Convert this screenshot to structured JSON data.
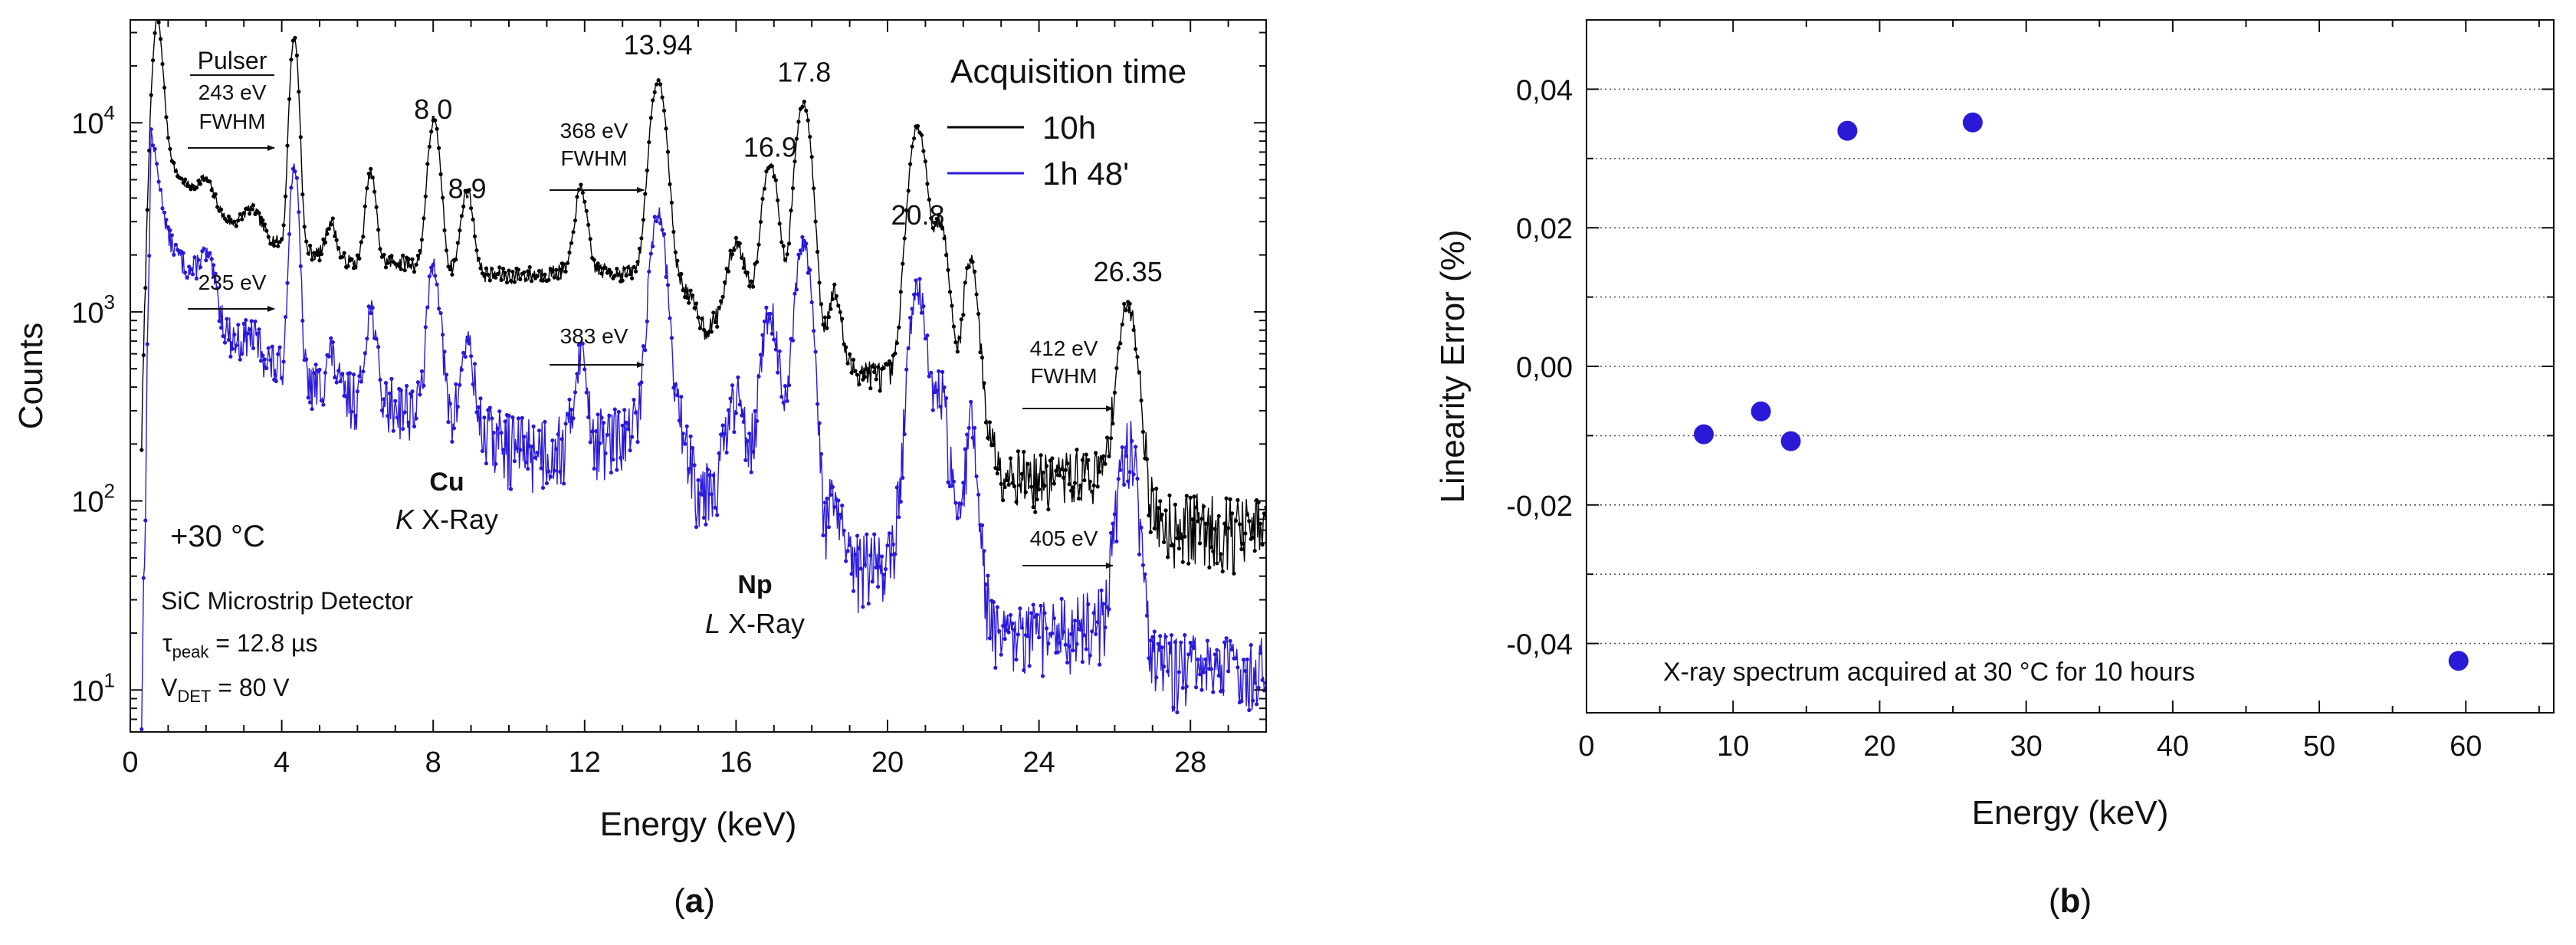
{
  "chart_data": [
    {
      "id": "a",
      "type": "line",
      "panel_label": "a",
      "xlabel": "Energy (keV)",
      "ylabel": "Counts",
      "xlim": [
        0,
        30
      ],
      "ylim": [
        6,
        35000
      ],
      "yscale": "log",
      "x_ticks": [
        0,
        4,
        8,
        12,
        16,
        20,
        24,
        28
      ],
      "y_ticks": [
        {
          "value": 10,
          "base": "10",
          "exp": "1"
        },
        {
          "value": 100,
          "base": "10",
          "exp": "2"
        },
        {
          "value": 1000,
          "base": "10",
          "exp": "3"
        },
        {
          "value": 10000,
          "base": "10",
          "exp": "4"
        }
      ],
      "legend_title": "Acquisition time",
      "series": [
        {
          "name": "10h",
          "color": "#000000"
        },
        {
          "name": "1h 48'",
          "color": "#2a1ad8"
        }
      ],
      "peak_labels": [
        {
          "text": "8.0",
          "x": 8.0,
          "y": 10500
        },
        {
          "text": "8.9",
          "x": 8.9,
          "y": 4000
        },
        {
          "text": "13.94",
          "x": 13.94,
          "y": 23000
        },
        {
          "text": "16.9",
          "x": 16.9,
          "y": 6600
        },
        {
          "text": "17.8",
          "x": 17.8,
          "y": 16500
        },
        {
          "text": "20.8",
          "x": 20.8,
          "y": 2900
        },
        {
          "text": "26.35",
          "x": 26.35,
          "y": 1450
        }
      ],
      "fwhm_labels": {
        "pulser_title": "Pulser",
        "pulser_black": "243 eV",
        "pulser_blue": "235 eV",
        "np_black": "368 eV",
        "np_blue": "383 eV",
        "k26_black": "412 eV",
        "k26_blue": "405 eV",
        "fwhm": "FWHM"
      },
      "annotations": {
        "cu_element": "Cu",
        "cu_line": "X-Ray",
        "cu_line_italic": "K",
        "np_element": "Np",
        "np_line": "X-Ray",
        "np_line_italic": "L",
        "temperature": "+30 °C",
        "detector": "SiC Microstrip Detector",
        "tau_symbol": "τ",
        "tau_sub": "peak",
        "tau_value": " = 12.8 µs",
        "v_symbol": "V",
        "v_sub": "DET",
        "v_value": " = 80 V"
      },
      "peaks": {
        "black": {
          "base": [
            [
              0.3,
              120
            ],
            [
              0.7,
              12000
            ],
            [
              1.2,
              5500
            ],
            [
              2.0,
              3500
            ],
            [
              3.0,
              2700
            ],
            [
              4.0,
              2300
            ],
            [
              5.0,
              2000
            ],
            [
              6.0,
              1800
            ],
            [
              7.0,
              1850
            ],
            [
              8.2,
              1700
            ],
            [
              9.0,
              1600
            ],
            [
              10.0,
              1550
            ],
            [
              11.0,
              1600
            ],
            [
              12.0,
              1700
            ],
            [
              13.0,
              1600
            ],
            [
              13.9,
              1700
            ],
            [
              14.6,
              1400
            ],
            [
              15.2,
              800
            ],
            [
              16.0,
              1100
            ],
            [
              16.5,
              1200
            ],
            [
              17.2,
              1150
            ],
            [
              17.8,
              1100
            ],
            [
              18.2,
              650
            ],
            [
              19.0,
              500
            ],
            [
              20.0,
              460
            ],
            [
              20.8,
              500
            ],
            [
              21.6,
              600
            ],
            [
              22.3,
              400
            ],
            [
              23.0,
              150
            ],
            [
              24.0,
              130
            ],
            [
              25.0,
              140
            ],
            [
              26.0,
              140
            ],
            [
              27.0,
              80
            ],
            [
              30.0,
              70
            ]
          ],
          "list": [
            [
              0.7,
              25000,
              0.12
            ],
            [
              2.0,
              1500,
              0.2
            ],
            [
              3.2,
              900,
              0.22
            ],
            [
              4.33,
              26000,
              0.1
            ],
            [
              5.3,
              1100,
              0.12
            ],
            [
              6.35,
              3600,
              0.12
            ],
            [
              8.02,
              8500,
              0.14
            ],
            [
              8.9,
              2800,
              0.14
            ],
            [
              11.9,
              2800,
              0.14
            ],
            [
              13.94,
              15000,
              0.18
            ],
            [
              16.0,
              1200,
              0.2
            ],
            [
              16.9,
              5000,
              0.18
            ],
            [
              17.78,
              11500,
              0.18
            ],
            [
              18.6,
              700,
              0.15
            ],
            [
              20.8,
              9000,
              0.2
            ],
            [
              21.4,
              2400,
              0.16
            ],
            [
              22.2,
              1500,
              0.15
            ],
            [
              26.35,
              950,
              0.22
            ]
          ]
        },
        "blue": {
          "base": [
            [
              0.3,
              8
            ],
            [
              0.55,
              9000
            ],
            [
              1.0,
              2500
            ],
            [
              2.0,
              1100
            ],
            [
              3.0,
              600
            ],
            [
              4.0,
              500
            ],
            [
              5.0,
              400
            ],
            [
              6.0,
              350
            ],
            [
              7.0,
              330
            ],
            [
              8.0,
              300
            ],
            [
              9.0,
              250
            ],
            [
              10.0,
              200
            ],
            [
              11.0,
              195
            ],
            [
              12.0,
              210
            ],
            [
              13.0,
              220
            ],
            [
              13.9,
              300
            ],
            [
              14.6,
              250
            ],
            [
              15.0,
              120
            ],
            [
              16.0,
              160
            ],
            [
              16.5,
              200
            ],
            [
              17.1,
              180
            ],
            [
              17.8,
              170
            ],
            [
              18.2,
              60
            ],
            [
              19.0,
              45
            ],
            [
              20.0,
              50
            ],
            [
              20.8,
              60
            ],
            [
              21.6,
              70
            ],
            [
              22.3,
              40
            ],
            [
              23.0,
              18
            ],
            [
              24.0,
              20
            ],
            [
              25.0,
              22
            ],
            [
              26.0,
              25
            ],
            [
              27.0,
              14
            ],
            [
              30.0,
              13
            ]
          ],
          "list": [
            [
              2.0,
              900,
              0.2
            ],
            [
              3.2,
              180,
              0.22
            ],
            [
              4.33,
              5500,
              0.1
            ],
            [
              5.3,
              220,
              0.12
            ],
            [
              6.35,
              700,
              0.12
            ],
            [
              8.02,
              1500,
              0.14
            ],
            [
              8.9,
              450,
              0.14
            ],
            [
              11.9,
              400,
              0.14
            ],
            [
              13.94,
              3000,
              0.18
            ],
            [
              16.0,
              180,
              0.2
            ],
            [
              16.9,
              800,
              0.18
            ],
            [
              17.78,
              2100,
              0.18
            ],
            [
              18.6,
              50,
              0.15
            ],
            [
              20.8,
              1250,
              0.2
            ],
            [
              21.4,
              300,
              0.16
            ],
            [
              22.2,
              200,
              0.15
            ],
            [
              26.35,
              180,
              0.22
            ]
          ]
        }
      }
    },
    {
      "id": "b",
      "type": "scatter",
      "panel_label": "b",
      "xlabel": "Energy (keV)",
      "ylabel": "Linearity Error (%)",
      "xlim": [
        0,
        66
      ],
      "ylim": [
        -0.05,
        0.05
      ],
      "x_ticks": [
        0,
        10,
        20,
        30,
        40,
        50,
        60
      ],
      "y_ticks": [
        -0.04,
        -0.02,
        0.0,
        0.02,
        0.04
      ],
      "y_tick_labels": [
        "-0,04",
        "-0,02",
        "0,00",
        "0,02",
        "0,04"
      ],
      "grid_lines": [
        -0.04,
        -0.03,
        -0.02,
        -0.01,
        0.0,
        0.01,
        0.02,
        0.03,
        0.04
      ],
      "annotation": "X-ray spectrum acquired at 30 °C for 10 hours",
      "marker_color": "#2a1ad8",
      "points": [
        {
          "x": 8.0,
          "y": -0.0098
        },
        {
          "x": 11.9,
          "y": -0.0065
        },
        {
          "x": 13.94,
          "y": -0.0108
        },
        {
          "x": 17.8,
          "y": 0.034
        },
        {
          "x": 26.35,
          "y": 0.0352
        },
        {
          "x": 59.5,
          "y": -0.0425
        }
      ]
    }
  ]
}
